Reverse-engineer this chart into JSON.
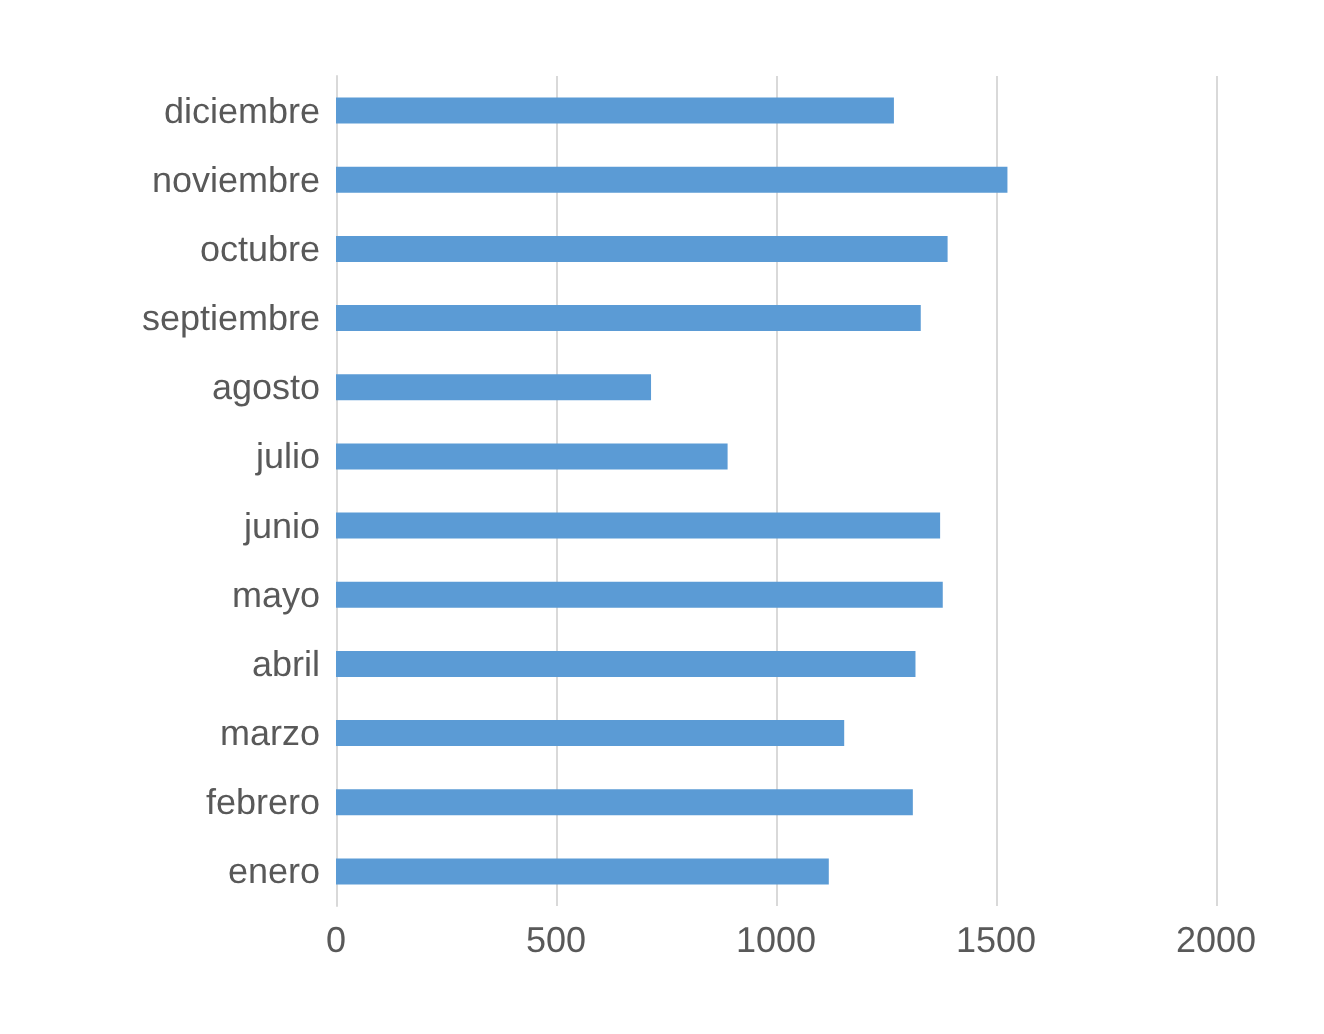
{
  "chart_data": {
    "type": "bar",
    "orientation": "horizontal",
    "categories": [
      "diciembre",
      "noviembre",
      "octubre",
      "septiembre",
      "agosto",
      "julio",
      "junio",
      "mayo",
      "abril",
      "marzo",
      "febrero",
      "enero"
    ],
    "values": [
      1268,
      1526,
      1390,
      1329,
      716,
      890,
      1373,
      1379,
      1317,
      1155,
      1311,
      1120
    ],
    "color": "#5b9bd5",
    "xlim": [
      0,
      2000
    ],
    "xticks": [
      0,
      500,
      1000,
      1500,
      2000
    ],
    "grid": "x"
  }
}
